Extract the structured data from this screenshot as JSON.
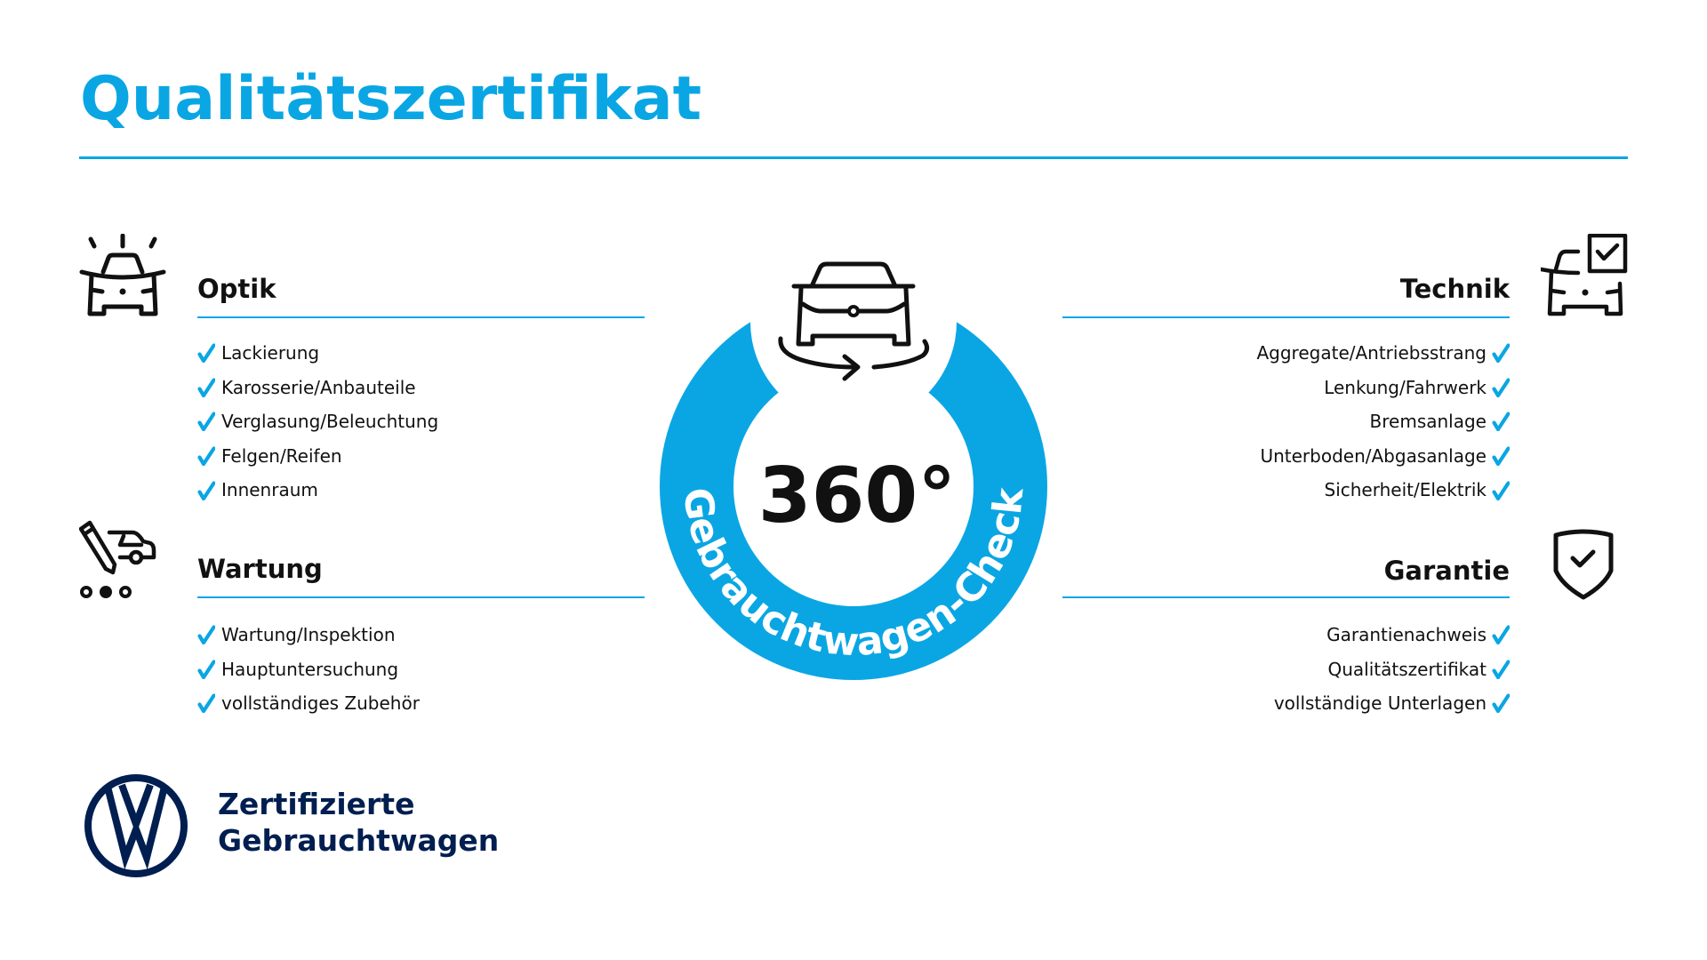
{
  "title": "Qualitätszertifikat",
  "colors": {
    "accent": "#0aa6e4",
    "text": "#111111",
    "brand": "#001e50"
  },
  "sections": {
    "optik": {
      "icon": "car-front-lights-icon",
      "heading": "Optik",
      "items": [
        "Lackierung",
        "Karosserie/Anbauteile",
        "Verglasung/Beleuchtung",
        "Felgen/Reifen",
        "Innenraum"
      ]
    },
    "wartung": {
      "icon": "maintenance-car-pencil-icon",
      "heading": "Wartung",
      "items": [
        "Wartung/Inspektion",
        "Hauptuntersuchung",
        "vollständiges Zubehör"
      ]
    },
    "technik": {
      "icon": "car-checkbox-icon",
      "heading": "Technik",
      "items": [
        "Aggregate/Antriebsstrang",
        "Lenkung/Fahrwerk",
        "Bremsanlage",
        "Unterboden/Abgasanlage",
        "Sicherheit/Elektrik"
      ]
    },
    "garantie": {
      "icon": "shield-check-icon",
      "heading": "Garantie",
      "items": [
        "Garantienachweis",
        "Qualitätszertifikat",
        "vollständige Unterlagen"
      ]
    }
  },
  "badge": {
    "icon": "car-360-rotate-icon",
    "value": "360°",
    "ring_text": "Gebrauchtwagen-Check"
  },
  "footer": {
    "logo": "vw-logo",
    "line1": "Zertifizierte",
    "line2": "Gebrauchtwagen"
  }
}
